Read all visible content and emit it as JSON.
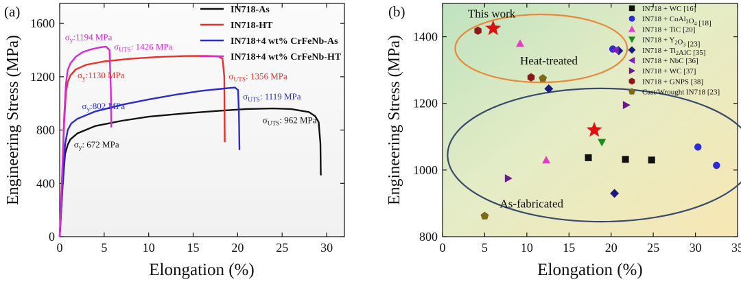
{
  "chart_data": [
    {
      "type": "line",
      "panel_label": "(a)",
      "xlabel": "Elongation (%)",
      "ylabel": "Engineering Stress (MPa)",
      "xlim": [
        0,
        32
      ],
      "ylim": [
        0,
        1750
      ],
      "xticks": [
        0,
        5,
        10,
        15,
        20,
        25,
        30
      ],
      "yticks": [
        0,
        400,
        800,
        1200,
        1600
      ],
      "legend_position": "top-right",
      "series": [
        {
          "name": "IN718-As",
          "color": "#111111",
          "x": [
            0,
            0.3,
            0.6,
            0.9,
            1.2,
            2,
            4,
            7,
            10,
            14,
            18,
            21,
            24,
            26,
            28,
            28.7,
            29.1,
            29.3,
            29.35
          ],
          "y": [
            0,
            350,
            620,
            690,
            730,
            775,
            830,
            870,
            900,
            925,
            945,
            958,
            962,
            958,
            935,
            905,
            860,
            700,
            460
          ]
        },
        {
          "name": "IN718-HT",
          "color": "#e8302a",
          "x": [
            0,
            0.25,
            0.5,
            0.7,
            0.9,
            1.2,
            1.8,
            3,
            5,
            8,
            11,
            14,
            16.5,
            17.8,
            18.3,
            18.5,
            18.55
          ],
          "y": [
            0,
            400,
            850,
            1080,
            1160,
            1210,
            1255,
            1290,
            1315,
            1335,
            1348,
            1355,
            1356,
            1353,
            1335,
            1200,
            710
          ]
        },
        {
          "name": "IN718+4 wt% CrFeNb-As",
          "color": "#2b2bd0",
          "x": [
            0,
            0.3,
            0.6,
            0.9,
            1.3,
            2,
            4,
            7,
            10,
            13,
            16,
            18.5,
            19.7,
            20.05,
            20.15,
            20.2
          ],
          "y": [
            0,
            350,
            690,
            800,
            850,
            885,
            940,
            990,
            1030,
            1065,
            1095,
            1112,
            1119,
            1100,
            900,
            650
          ]
        },
        {
          "name": "IN718+4 wt% CrFeNb-HT",
          "color": "#d62ad6",
          "x": [
            0,
            0.25,
            0.5,
            0.7,
            0.9,
            1.2,
            1.8,
            2.6,
            3.5,
            4.5,
            5.2,
            5.6,
            5.75,
            5.8
          ],
          "y": [
            0,
            400,
            900,
            1150,
            1250,
            1300,
            1350,
            1385,
            1405,
            1420,
            1426,
            1400,
            1100,
            820
          ]
        }
      ],
      "annotations": [
        {
          "sub": "y",
          "value": ":1194 MPa",
          "color": "#d62ad6",
          "x": 0.6,
          "y": 1475
        },
        {
          "sub": "UTS",
          "value": ": 1426 MPa",
          "color": "#d62ad6",
          "x": 6.1,
          "y": 1402
        },
        {
          "sub": "y",
          "value": ":1130 MPa",
          "color": "#e8302a",
          "x": 2.0,
          "y": 1190
        },
        {
          "sub": "UTS",
          "value": ": 1356 MPa",
          "color": "#e8302a",
          "x": 19.0,
          "y": 1180
        },
        {
          "sub": "UTS",
          "value": ": 1119 MPa",
          "color": "#2b2bd0",
          "x": 20.6,
          "y": 1030
        },
        {
          "sub": "y",
          "value": ":802 MPa",
          "color": "#2b2bd0",
          "x": 2.5,
          "y": 958
        },
        {
          "sub": "UTS",
          "value": ": 962 MPa",
          "color": "#111111",
          "x": 22.8,
          "y": 852
        },
        {
          "sub": "y",
          "value": ": 672 MPa",
          "color": "#111111",
          "x": 1.6,
          "y": 670
        }
      ]
    },
    {
      "type": "scatter",
      "panel_label": "(b)",
      "xlabel": "Elongation (%)",
      "ylabel": "Engineering Stress (MPa)",
      "xlim": [
        0,
        35
      ],
      "ylim": [
        800,
        1500
      ],
      "xticks": [
        0,
        5,
        10,
        15,
        20,
        25,
        30,
        35
      ],
      "yticks": [
        800,
        1000,
        1200,
        1400
      ],
      "legend_position": "top-right",
      "series": [
        {
          "name": "IN718 + WC [16]",
          "marker": "square",
          "color": "#111111",
          "points": [
            [
              17.3,
              1037
            ],
            [
              21.7,
              1032
            ],
            [
              24.8,
              1030
            ]
          ]
        },
        {
          "name": "IN718 + CoAl₂O₄ [18]",
          "marker": "circle",
          "color": "#2b2bd8",
          "points": [
            [
              20.2,
              1363
            ],
            [
              30.3,
              1069
            ],
            [
              32.5,
              1014
            ]
          ]
        },
        {
          "name": "IN718 + TiC [20]",
          "marker": "triangle-up",
          "color": "#e83ac8",
          "points": [
            [
              9.2,
              1380
            ],
            [
              12.3,
              1030
            ]
          ]
        },
        {
          "name": "IN718 + Y₂O₃ [23]",
          "marker": "triangle-down",
          "color": "#1a8a1a",
          "points": [
            [
              18.9,
              1083
            ]
          ]
        },
        {
          "name": "IN718 + Ti₂AlC [35]",
          "marker": "diamond",
          "color": "#1a1a7a",
          "points": [
            [
              12.6,
              1244
            ],
            [
              20.4,
              930
            ],
            [
              20.9,
              1358
            ]
          ]
        },
        {
          "name": "IN718 + NbC [36]",
          "marker": "triangle-left",
          "color": "#7a22b8",
          "points": [
            [
              20.5,
              1360
            ]
          ]
        },
        {
          "name": "IN718 + WC [37]",
          "marker": "triangle-right",
          "color": "#6a1a8a",
          "points": [
            [
              7.8,
              975
            ],
            [
              21.8,
              1195
            ]
          ]
        },
        {
          "name": "IN718 + GNPS [38]",
          "marker": "hexagon",
          "color": "#8a1a1a",
          "points": [
            [
              4.2,
              1418
            ],
            [
              10.5,
              1278
            ]
          ]
        },
        {
          "name": "Cast/Wrought IN718 [23]",
          "marker": "pentagon",
          "color": "#7a6a1a",
          "points": [
            [
              5.0,
              862
            ],
            [
              11.9,
              1275
            ]
          ]
        },
        {
          "name": "This work",
          "marker": "star",
          "color": "#e01010",
          "points": [
            [
              6.0,
              1425
            ],
            [
              18.0,
              1120
            ]
          ]
        }
      ],
      "annotations": [
        {
          "text": "This  work",
          "x": 3.0,
          "y": 1458
        },
        {
          "text": "Heat-treated",
          "x": 9.2,
          "y": 1317
        },
        {
          "text": "As-fabricated",
          "x": 6.8,
          "y": 888
        }
      ],
      "regions": [
        {
          "name": "Heat-treated",
          "stroke": "#e88a3a",
          "cx": 11.7,
          "cy": 1365,
          "rx": 10.2,
          "ry": 102
        },
        {
          "name": "As-fabricated",
          "stroke": "#3a4a6a",
          "cx": 18.8,
          "cy": 1045,
          "rx": 18.2,
          "ry": 200
        }
      ]
    }
  ]
}
